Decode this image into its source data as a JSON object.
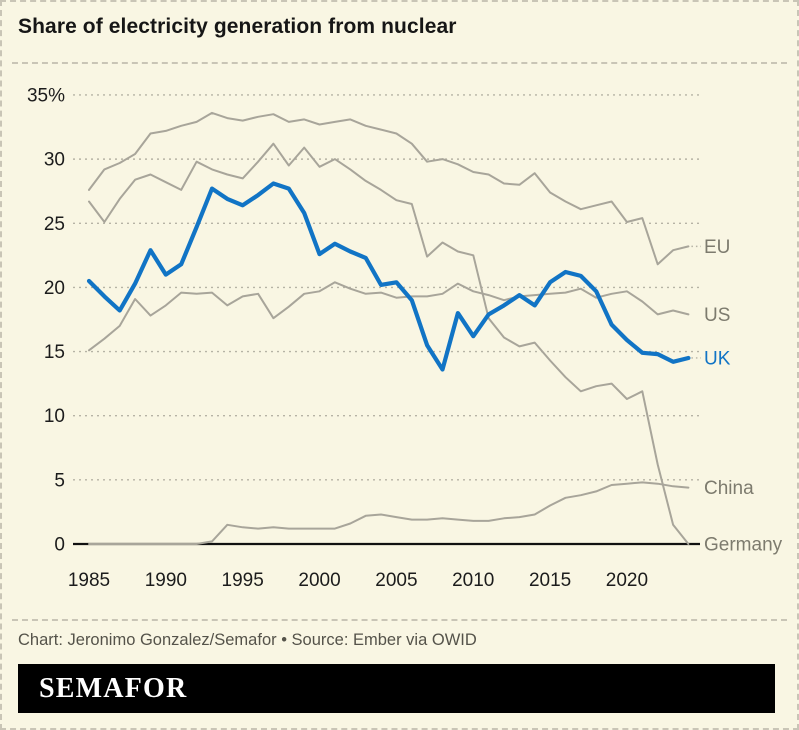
{
  "title": "Share of electricity generation from nuclear",
  "footer": {
    "credit": "Chart: Jeronimo Gonzalez/Semafor • Source: Ember via OWID"
  },
  "logo": {
    "text": "SEMAFOR"
  },
  "colors": {
    "background": "#f9f6e3",
    "border": "#c9c5b6",
    "title_text": "#161616",
    "tick_text": "#1c1c1c",
    "grid": "#b6b3a5",
    "axis": "#111111",
    "uk_blue": "#1174c5",
    "line_gray": "#a8a59a",
    "label_gray": "#7d7b6e",
    "credit_text": "#55534a",
    "logo_bg": "#000000",
    "logo_text": "#ffffff"
  },
  "chart_data": {
    "type": "line",
    "title": "Share of electricity generation from nuclear",
    "unit": "%",
    "x_start": 1985,
    "x_end": 2024,
    "x_ticks": [
      1985,
      1990,
      1995,
      2000,
      2005,
      2010,
      2015,
      2020
    ],
    "y_ticks": [
      {
        "value": 35,
        "label": "35%"
      },
      {
        "value": 30,
        "label": "30"
      },
      {
        "value": 25,
        "label": "25"
      },
      {
        "value": 20,
        "label": "20"
      },
      {
        "value": 15,
        "label": "15"
      },
      {
        "value": 10,
        "label": "10"
      },
      {
        "value": 5,
        "label": "5"
      },
      {
        "value": 0,
        "label": "0"
      }
    ],
    "ylim": [
      0,
      35
    ],
    "grid": "horizontal-dotted",
    "legend_position": "right-edge-labels",
    "series": [
      {
        "name": "EU",
        "color": "#a8a59a",
        "label_color": "#7d7b6e",
        "width": 2,
        "leader": true,
        "values": [
          27.6,
          29.2,
          29.7,
          30.4,
          32.0,
          32.2,
          32.6,
          32.9,
          33.6,
          33.2,
          33.0,
          33.3,
          33.5,
          32.9,
          33.1,
          32.7,
          32.9,
          33.1,
          32.6,
          32.3,
          32.0,
          31.2,
          29.8,
          30.0,
          29.6,
          29.0,
          28.8,
          28.1,
          28.0,
          28.9,
          27.4,
          26.7,
          26.1,
          26.4,
          26.7,
          25.1,
          25.4,
          21.8,
          22.9,
          23.2
        ]
      },
      {
        "name": "Germany",
        "color": "#a8a59a",
        "label_color": "#7d7b6e",
        "width": 2,
        "leader": false,
        "values": [
          26.7,
          25.1,
          26.9,
          28.4,
          28.8,
          28.2,
          27.6,
          29.8,
          29.2,
          28.8,
          28.5,
          29.8,
          31.2,
          29.5,
          30.9,
          29.4,
          30.0,
          29.2,
          28.3,
          27.6,
          26.8,
          26.5,
          22.4,
          23.5,
          22.8,
          22.5,
          17.6,
          16.1,
          15.4,
          15.7,
          14.3,
          13.0,
          11.9,
          12.3,
          12.5,
          11.3,
          11.9,
          6.2,
          1.5,
          0
        ]
      },
      {
        "name": "US",
        "color": "#a8a59a",
        "label_color": "#7d7b6e",
        "width": 2,
        "leader": false,
        "values": [
          15.1,
          16.0,
          17.0,
          19.1,
          17.8,
          18.6,
          19.6,
          19.5,
          19.6,
          18.6,
          19.3,
          19.5,
          17.6,
          18.5,
          19.5,
          19.7,
          20.4,
          19.9,
          19.5,
          19.6,
          19.2,
          19.3,
          19.3,
          19.5,
          20.3,
          19.7,
          19.4,
          19.0,
          19.3,
          19.4,
          19.5,
          19.6,
          19.9,
          19.2,
          19.5,
          19.7,
          18.9,
          17.9,
          18.2,
          17.9
        ]
      },
      {
        "name": "China",
        "color": "#a8a59a",
        "label_color": "#7d7b6e",
        "width": 2,
        "leader": false,
        "values": [
          0,
          0,
          0,
          0,
          0,
          0,
          0,
          0,
          0.2,
          1.5,
          1.3,
          1.2,
          1.3,
          1.2,
          1.2,
          1.2,
          1.2,
          1.6,
          2.2,
          2.3,
          2.1,
          1.9,
          1.9,
          2.0,
          1.9,
          1.8,
          1.8,
          2.0,
          2.1,
          2.3,
          3.0,
          3.6,
          3.8,
          4.1,
          4.6,
          4.7,
          4.8,
          4.7,
          4.5,
          4.4
        ]
      },
      {
        "name": "UK",
        "color": "#1174c5",
        "label_color": "#1174c5",
        "width": 4.2,
        "leader": true,
        "values": [
          20.5,
          19.3,
          18.2,
          20.3,
          22.9,
          21.0,
          21.8,
          24.7,
          27.7,
          26.9,
          26.4,
          27.2,
          28.1,
          27.7,
          25.8,
          22.6,
          23.4,
          22.8,
          22.3,
          20.2,
          20.4,
          19.0,
          15.5,
          13.6,
          18.0,
          16.2,
          17.9,
          18.6,
          19.4,
          18.6,
          20.4,
          21.2,
          20.9,
          19.7,
          17.1,
          15.9,
          14.9,
          14.8,
          14.2,
          14.5
        ]
      }
    ]
  }
}
